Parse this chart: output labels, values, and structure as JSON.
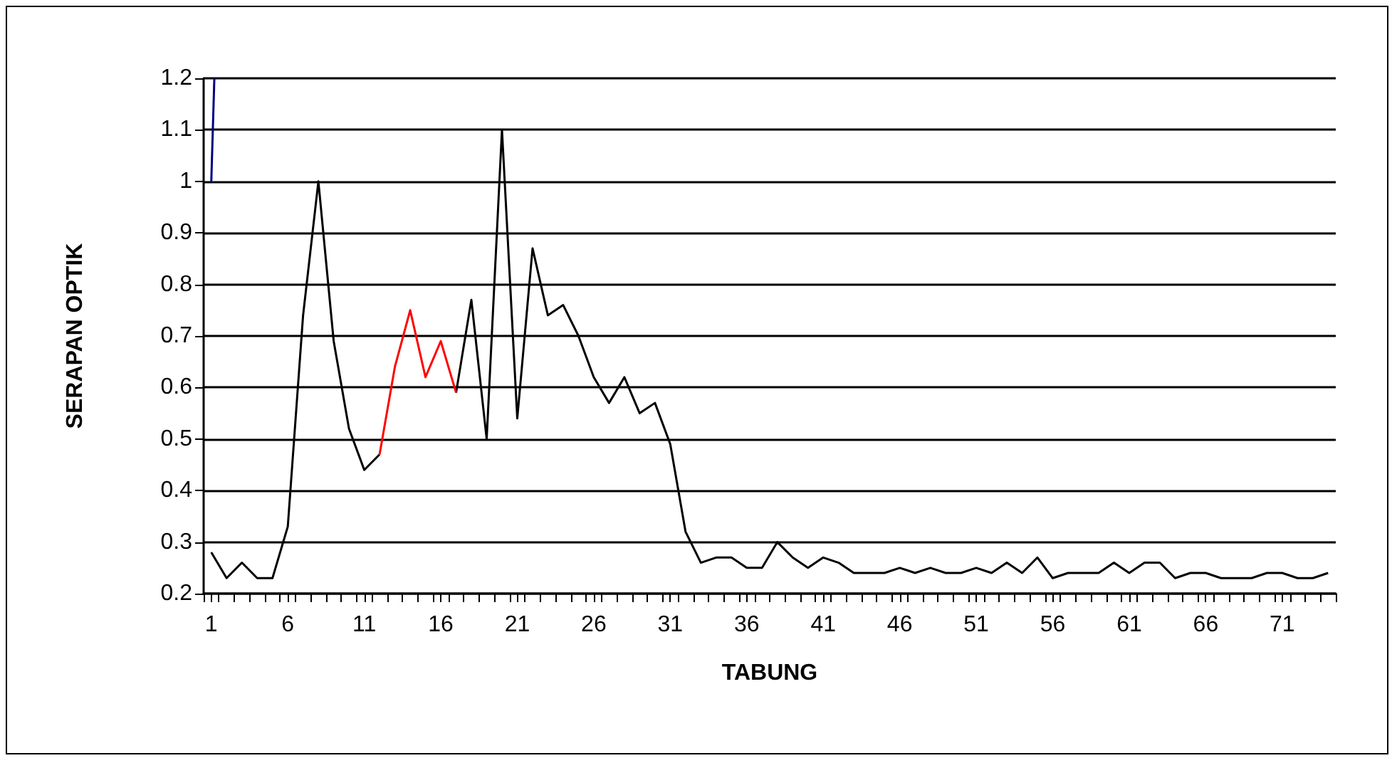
{
  "chart_data": {
    "type": "line",
    "xlabel": "TABUNG",
    "ylabel": "SERAPAN OPTIK",
    "xlim": [
      0.5,
      74.5
    ],
    "ylim": [
      0.2,
      1.2
    ],
    "yticks": [
      0.2,
      0.3,
      0.4,
      0.5,
      0.6,
      0.7,
      0.8,
      0.9,
      1,
      1.1,
      1.2
    ],
    "xticks": [
      1,
      6,
      11,
      16,
      21,
      26,
      31,
      36,
      41,
      46,
      51,
      56,
      61,
      66,
      71,
      {
        "value": 0.5,
        "label": null
      },
      {
        "value": 1.5,
        "label": null
      },
      {
        "value": 2.5,
        "label": null
      },
      {
        "value": 3.5,
        "label": null
      },
      {
        "value": 4.5,
        "label": null
      },
      {
        "value": 5.5,
        "label": null
      },
      {
        "value": 6.5,
        "label": null
      },
      {
        "value": 7.5,
        "label": null
      },
      {
        "value": 8.5,
        "label": null
      },
      {
        "value": 9.5,
        "label": null
      },
      {
        "value": 10.5,
        "label": null
      },
      {
        "value": 11.5,
        "label": null
      },
      {
        "value": 12.5,
        "label": null
      },
      {
        "value": 13.5,
        "label": null
      },
      {
        "value": 14.5,
        "label": null
      },
      {
        "value": 15.5,
        "label": null
      },
      {
        "value": 16.5,
        "label": null
      },
      {
        "value": 17.5,
        "label": null
      },
      {
        "value": 18.5,
        "label": null
      },
      {
        "value": 19.5,
        "label": null
      },
      {
        "value": 20.5,
        "label": null
      },
      {
        "value": 21.5,
        "label": null
      },
      {
        "value": 22.5,
        "label": null
      },
      {
        "value": 23.5,
        "label": null
      },
      {
        "value": 24.5,
        "label": null
      },
      {
        "value": 25.5,
        "label": null
      },
      {
        "value": 26.5,
        "label": null
      },
      {
        "value": 27.5,
        "label": null
      },
      {
        "value": 28.5,
        "label": null
      },
      {
        "value": 29.5,
        "label": null
      },
      {
        "value": 30.5,
        "label": null
      },
      {
        "value": 31.5,
        "label": null
      },
      {
        "value": 32.5,
        "label": null
      },
      {
        "value": 33.5,
        "label": null
      },
      {
        "value": 34.5,
        "label": null
      },
      {
        "value": 35.5,
        "label": null
      },
      {
        "value": 36.5,
        "label": null
      },
      {
        "value": 37.5,
        "label": null
      },
      {
        "value": 38.5,
        "label": null
      },
      {
        "value": 39.5,
        "label": null
      },
      {
        "value": 40.5,
        "label": null
      },
      {
        "value": 41.5,
        "label": null
      },
      {
        "value": 42.5,
        "label": null
      },
      {
        "value": 43.5,
        "label": null
      },
      {
        "value": 44.5,
        "label": null
      },
      {
        "value": 45.5,
        "label": null
      },
      {
        "value": 46.5,
        "label": null
      },
      {
        "value": 47.5,
        "label": null
      },
      {
        "value": 48.5,
        "label": null
      },
      {
        "value": 49.5,
        "label": null
      },
      {
        "value": 50.5,
        "label": null
      },
      {
        "value": 51.5,
        "label": null
      },
      {
        "value": 52.5,
        "label": null
      },
      {
        "value": 53.5,
        "label": null
      },
      {
        "value": 54.5,
        "label": null
      },
      {
        "value": 55.5,
        "label": null
      },
      {
        "value": 56.5,
        "label": null
      },
      {
        "value": 57.5,
        "label": null
      },
      {
        "value": 58.5,
        "label": null
      },
      {
        "value": 59.5,
        "label": null
      },
      {
        "value": 60.5,
        "label": null
      },
      {
        "value": 61.5,
        "label": null
      },
      {
        "value": 62.5,
        "label": null
      },
      {
        "value": 63.5,
        "label": null
      },
      {
        "value": 64.5,
        "label": null
      },
      {
        "value": 65.5,
        "label": null
      },
      {
        "value": 66.5,
        "label": null
      },
      {
        "value": 67.5,
        "label": null
      },
      {
        "value": 68.5,
        "label": null
      },
      {
        "value": 69.5,
        "label": null
      },
      {
        "value": 70.5,
        "label": null
      },
      {
        "value": 71.5,
        "label": null
      },
      {
        "value": 72.5,
        "label": null
      },
      {
        "value": 73.5,
        "label": null
      },
      {
        "value": 74.5,
        "label": null
      }
    ],
    "grid": "y",
    "marker": "none",
    "line_style": "solid",
    "x": [
      1,
      2,
      3,
      4,
      5,
      6,
      7,
      8,
      9,
      10,
      11,
      12,
      13,
      14,
      15,
      16,
      17,
      18,
      19,
      20,
      21,
      22,
      23,
      24,
      25,
      26,
      27,
      28,
      29,
      30,
      31,
      32,
      33,
      34,
      35,
      36,
      37,
      38,
      39,
      40,
      41,
      42,
      43,
      44,
      45,
      46,
      47,
      48,
      49,
      50,
      51,
      52,
      53,
      54,
      55,
      56,
      57,
      58,
      59,
      60,
      61,
      62,
      63,
      64,
      65,
      66,
      67,
      68,
      69,
      70,
      71,
      72,
      73,
      74
    ],
    "series": [
      {
        "color": "#000000",
        "values": [
          0.28,
          0.23,
          0.26,
          0.23,
          0.23,
          0.33,
          0.74,
          1.0,
          0.69,
          0.52,
          0.44,
          0.47,
          null,
          null,
          null,
          null,
          0.59,
          0.77,
          0.5,
          1.1,
          0.54,
          0.87,
          0.74,
          0.76,
          0.7,
          0.62,
          0.57,
          0.62,
          0.55,
          0.57,
          0.49,
          0.32,
          0.26,
          0.27,
          0.27,
          0.25,
          0.25,
          0.3,
          0.27,
          0.25,
          0.27,
          0.26,
          0.24,
          0.24,
          0.24,
          0.25,
          0.24,
          0.25,
          0.24,
          0.24,
          0.25,
          0.24,
          0.26,
          0.24,
          0.27,
          0.23,
          0.24,
          0.24,
          0.24,
          0.26,
          0.24,
          0.26,
          0.26,
          0.23,
          0.24,
          0.24,
          0.23,
          0.23,
          0.23,
          0.24,
          0.24,
          0.23,
          0.23,
          0.24
        ]
      },
      {
        "color": "#ff0000",
        "x": [
          12,
          13,
          14,
          15,
          16,
          17
        ],
        "values": [
          0.47,
          0.64,
          0.75,
          0.62,
          0.69,
          0.59
        ]
      },
      {
        "color": "#000080",
        "x": [
          1,
          1.2
        ],
        "values": [
          1.0,
          1.2
        ]
      }
    ]
  }
}
